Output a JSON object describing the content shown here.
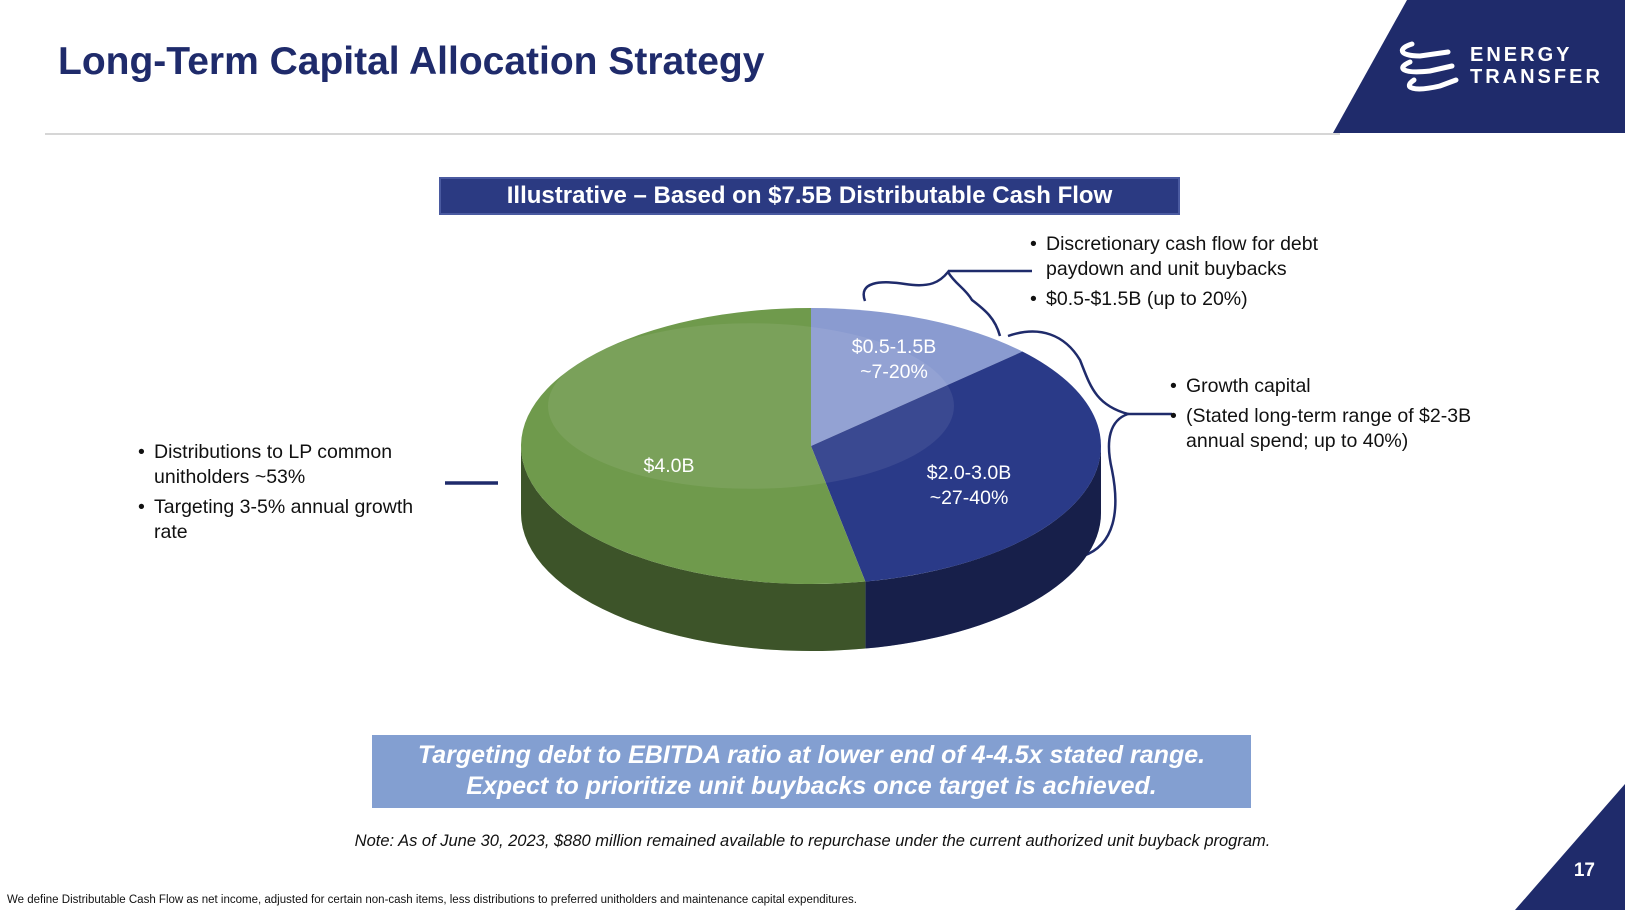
{
  "header": {
    "title": "Long-Term Capital Allocation Strategy"
  },
  "logo": {
    "lines": [
      "ENERGY",
      "TRANSFER"
    ]
  },
  "chart_data": {
    "type": "pie",
    "title": "Illustrative – Based on $7.5B Distributable Cash Flow",
    "categories": [
      [
        "$0.5-1.5B",
        "~7-20%"
      ],
      [
        "$2.0-3.0B",
        "~27-40%"
      ],
      [
        "$4.0B"
      ]
    ],
    "values": [
      13,
      34,
      53
    ],
    "colors": [
      "#8a9bd0",
      "#2a3a88",
      "#6f9a4c"
    ]
  },
  "annotations": [
    {
      "bullets": [
        "Discretionary cash flow for debt paydown and unit buybacks",
        "$0.5-$1.5B (up to 20%)"
      ]
    },
    {
      "bullets": [
        "Growth capital",
        "(Stated long-term range of $2-3B annual spend; up to 40%)"
      ]
    },
    {
      "bullets": [
        "Distributions to LP common unitholders ~53%",
        "Targeting 3-5% annual growth rate"
      ]
    }
  ],
  "callout": {
    "lines": [
      "Targeting debt to EBITDA ratio at lower end of 4-4.5x stated range.",
      "Expect to prioritize unit buybacks once target is achieved."
    ]
  },
  "note": "Note: As of June 30, 2023, $880 million remained available to repurchase under the current authorized unit buyback program.",
  "footnote": "We define Distributable Cash Flow as net income, adjusted for certain non-cash items, less distributions to preferred unitholders and maintenance capital expenditures.",
  "page_number": "17"
}
